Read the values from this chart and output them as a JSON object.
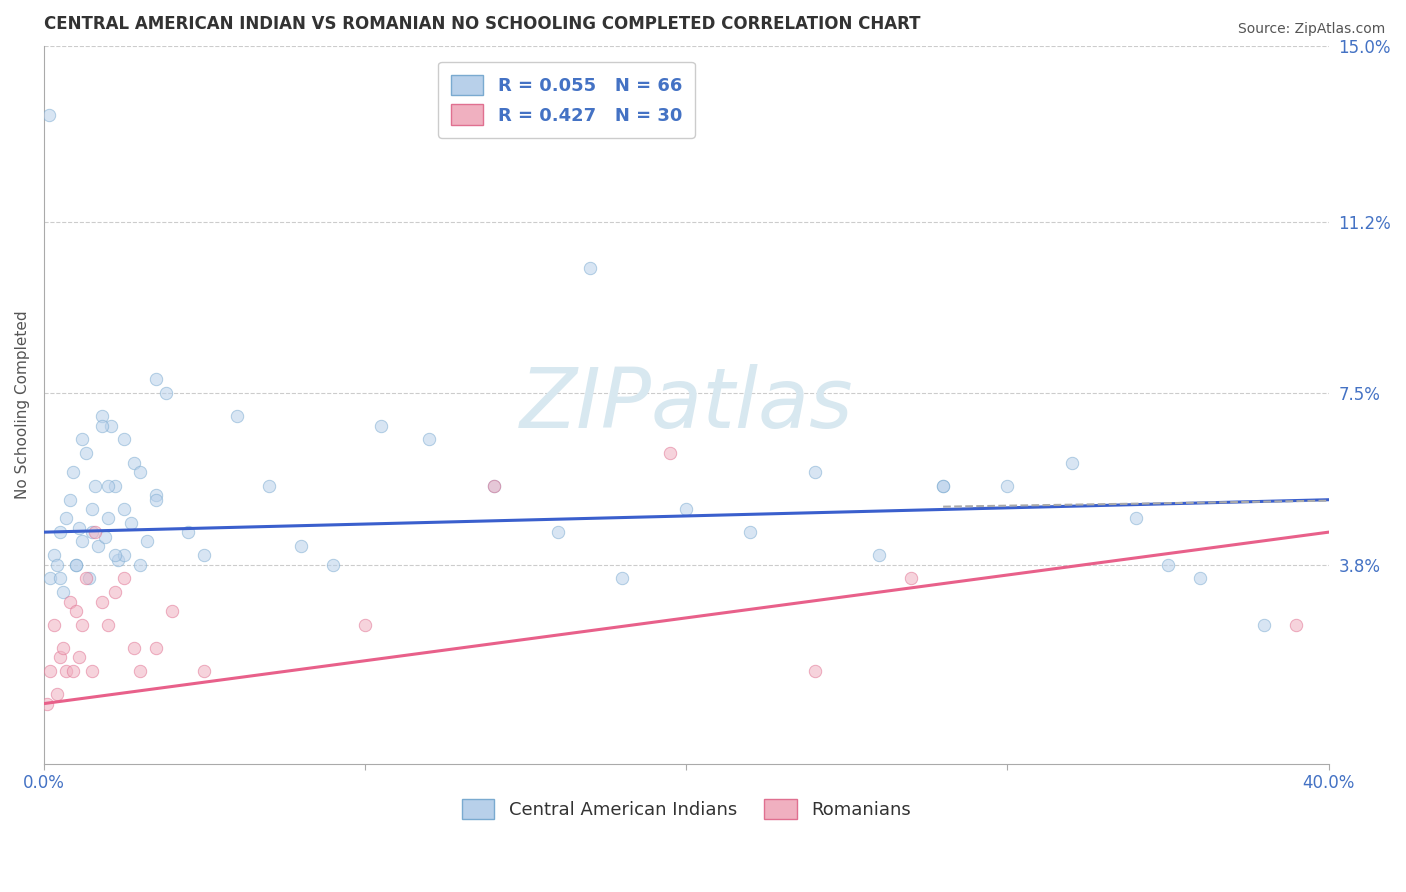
{
  "title": "CENTRAL AMERICAN INDIAN VS ROMANIAN NO SCHOOLING COMPLETED CORRELATION CHART",
  "source": "Source: ZipAtlas.com",
  "ylabel": "No Schooling Completed",
  "xlim": [
    0.0,
    40.0
  ],
  "ylim": [
    -0.5,
    15.0
  ],
  "yticks": [
    3.8,
    7.5,
    11.2,
    15.0
  ],
  "ytick_labels": [
    "3.8%",
    "7.5%",
    "11.2%",
    "15.0%"
  ],
  "xticks": [
    0.0,
    10.0,
    20.0,
    30.0,
    40.0
  ],
  "xtick_labels": [
    "0.0%",
    "",
    "",
    "",
    "40.0%"
  ],
  "grid_color": "#cccccc",
  "background_color": "#ffffff",
  "blue_scatter_x": [
    0.2,
    0.3,
    0.4,
    0.5,
    0.6,
    0.7,
    0.8,
    0.9,
    1.0,
    1.1,
    1.2,
    1.3,
    1.4,
    1.5,
    1.6,
    1.7,
    1.8,
    1.9,
    2.0,
    2.1,
    2.2,
    2.3,
    2.5,
    2.7,
    2.8,
    3.0,
    3.2,
    3.5,
    3.8,
    4.5,
    5.0,
    6.0,
    7.0,
    8.0,
    9.0,
    10.5,
    12.0,
    14.0,
    16.0,
    18.0,
    20.0,
    22.0,
    24.0,
    26.0,
    28.0,
    30.0,
    32.0,
    34.0,
    36.0,
    38.0,
    0.15,
    0.5,
    1.0,
    1.5,
    2.0,
    2.5,
    3.0,
    3.5,
    17.0,
    28.0,
    35.0,
    2.5,
    1.2,
    1.8,
    2.2,
    3.5
  ],
  "blue_scatter_y": [
    3.5,
    4.0,
    3.8,
    4.5,
    3.2,
    4.8,
    5.2,
    5.8,
    3.8,
    4.6,
    6.5,
    6.2,
    3.5,
    5.0,
    5.5,
    4.2,
    7.0,
    4.4,
    4.8,
    6.8,
    5.5,
    3.9,
    4.0,
    4.7,
    6.0,
    5.8,
    4.3,
    5.3,
    7.5,
    4.5,
    4.0,
    7.0,
    5.5,
    4.2,
    3.8,
    6.8,
    6.5,
    5.5,
    4.5,
    3.5,
    5.0,
    4.5,
    5.8,
    4.0,
    5.5,
    5.5,
    6.0,
    4.8,
    3.5,
    2.5,
    13.5,
    3.5,
    3.8,
    4.5,
    5.5,
    6.5,
    3.8,
    7.8,
    10.2,
    5.5,
    3.8,
    5.0,
    4.3,
    6.8,
    4.0,
    5.2
  ],
  "pink_scatter_x": [
    0.1,
    0.2,
    0.3,
    0.4,
    0.5,
    0.6,
    0.7,
    0.8,
    0.9,
    1.0,
    1.1,
    1.2,
    1.3,
    1.5,
    1.6,
    1.8,
    2.0,
    2.2,
    2.5,
    2.8,
    3.0,
    3.5,
    4.0,
    5.0,
    10.0,
    14.0,
    19.5,
    24.0,
    27.0,
    39.0
  ],
  "pink_scatter_y": [
    0.8,
    1.5,
    2.5,
    1.0,
    1.8,
    2.0,
    1.5,
    3.0,
    1.5,
    2.8,
    1.8,
    2.5,
    3.5,
    1.5,
    4.5,
    3.0,
    2.5,
    3.2,
    3.5,
    2.0,
    1.5,
    2.0,
    2.8,
    1.5,
    2.5,
    5.5,
    6.2,
    1.5,
    3.5,
    2.5
  ],
  "blue_line_color": "#3a5fcd",
  "pink_line_color": "#e8608a",
  "blue_line_x": [
    0.0,
    40.0
  ],
  "blue_line_y": [
    4.5,
    5.2
  ],
  "pink_line_x": [
    0.0,
    40.0
  ],
  "pink_line_y": [
    0.8,
    4.5
  ],
  "dash_line_x": [
    28.0,
    40.0
  ],
  "dash_line_y": [
    5.05,
    5.18
  ],
  "title_fontsize": 12,
  "tick_fontsize": 12,
  "label_fontsize": 11,
  "scatter_size": 80,
  "scatter_alpha": 0.55,
  "scatter_blue_color": "#b8d0ea",
  "scatter_blue_edge": "#7aaad0",
  "scatter_pink_color": "#f0b0c0",
  "scatter_pink_edge": "#e07090",
  "legend_label1": "R = 0.055   N = 66",
  "legend_label2": "R = 0.427   N = 30",
  "legend_label1_bottom": "Central American Indians",
  "legend_label2_bottom": "Romanians",
  "watermark_text": "ZIPatlas",
  "watermark_color": "#d8e8f0",
  "tick_color_y": "#4472c4",
  "tick_color_x": "#4472c4"
}
